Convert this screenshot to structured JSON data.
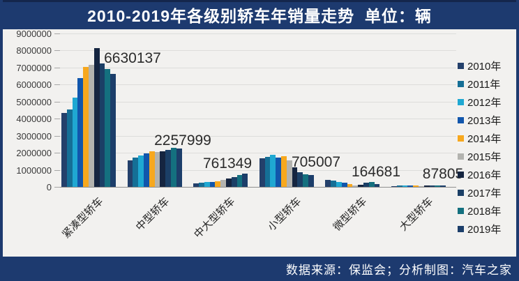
{
  "title": "2010-2019年各级别轿车年销量走势  单位：辆",
  "footer": "数据来源：保监会；分析制图：汽车之家",
  "chart_data": {
    "type": "bar",
    "title": "2010-2019年各级别轿车年销量走势",
    "unit": "辆",
    "categories": [
      "紧凑型轿车",
      "中型轿车",
      "中大型轿车",
      "小型轿车",
      "微型轿车",
      "大型轿车"
    ],
    "series": [
      {
        "name": "2010年",
        "color": "#24406b",
        "values": [
          4350000,
          1550000,
          200000,
          1690000,
          420000,
          60000
        ]
      },
      {
        "name": "2011年",
        "color": "#156f96",
        "values": [
          4550000,
          1700000,
          230000,
          1760000,
          360000,
          70000
        ]
      },
      {
        "name": "2012年",
        "color": "#1fa8d2",
        "values": [
          5250000,
          1850000,
          270000,
          1880000,
          300000,
          80000
        ]
      },
      {
        "name": "2013年",
        "color": "#1156ac",
        "values": [
          6400000,
          1950000,
          300000,
          1700000,
          240000,
          70000
        ]
      },
      {
        "name": "2014年",
        "color": "#f7a81e",
        "values": [
          7050000,
          2100000,
          330000,
          1820000,
          150000,
          80000
        ]
      },
      {
        "name": "2015年",
        "color": "#b3b3af",
        "values": [
          7150000,
          2050000,
          390000,
          1560000,
          90000,
          60000
        ]
      },
      {
        "name": "2016年",
        "color": "#152540",
        "values": [
          8150000,
          2100000,
          500000,
          1150000,
          130000,
          70000
        ]
      },
      {
        "name": "2017年",
        "color": "#1b3f66",
        "values": [
          7250000,
          2150000,
          560000,
          860000,
          260000,
          80000
        ]
      },
      {
        "name": "2018年",
        "color": "#14707f",
        "values": [
          6900000,
          2300000,
          700000,
          730000,
          270000,
          90000
        ]
      },
      {
        "name": "2019年",
        "color": "#1c3e6a",
        "values": [
          6630137,
          2257999,
          761349,
          705007,
          164681,
          87805
        ]
      }
    ],
    "annotations": [
      {
        "category": "紧凑型轿车",
        "text": "6630137"
      },
      {
        "category": "中型轿车",
        "text": "2257999"
      },
      {
        "category": "中大型轿车",
        "text": "761349"
      },
      {
        "category": "小型轿车",
        "text": "705007"
      },
      {
        "category": "微型轿车",
        "text": "164681"
      },
      {
        "category": "大型轿车",
        "text": "87805"
      }
    ],
    "yticks": [
      9000000,
      8000000,
      7000000,
      6000000,
      5000000,
      4000000,
      3000000,
      2000000,
      1000000,
      0
    ],
    "ylim": [
      0,
      9000000
    ],
    "grid": true,
    "legend_position": "right"
  }
}
